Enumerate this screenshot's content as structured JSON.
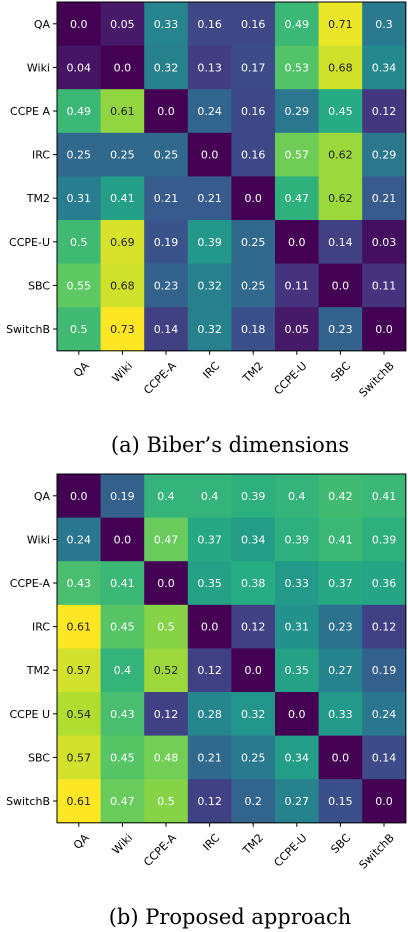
{
  "chart_data": [
    {
      "type": "heatmap",
      "caption": "(a) Biber’s dimensions",
      "row_labels": [
        "QA",
        "Wiki",
        "CCPE A",
        "IRC",
        "TM2",
        "CCPE-U",
        "SBC",
        "SwitchB"
      ],
      "col_labels": [
        "QA",
        "Wiki",
        "CCPE-A",
        "IRC",
        "TM2",
        "CCPE-U",
        "SBC",
        "SwitchB"
      ],
      "values": [
        [
          0.0,
          0.05,
          0.33,
          0.16,
          0.16,
          0.49,
          0.71,
          0.3
        ],
        [
          0.04,
          0.0,
          0.32,
          0.13,
          0.17,
          0.53,
          0.68,
          0.34
        ],
        [
          0.49,
          0.61,
          0.0,
          0.24,
          0.16,
          0.29,
          0.45,
          0.12
        ],
        [
          0.25,
          0.25,
          0.25,
          0.0,
          0.16,
          0.57,
          0.62,
          0.29
        ],
        [
          0.31,
          0.41,
          0.21,
          0.21,
          0.0,
          0.47,
          0.62,
          0.21
        ],
        [
          0.5,
          0.69,
          0.19,
          0.39,
          0.25,
          0.0,
          0.14,
          0.03
        ],
        [
          0.55,
          0.68,
          0.23,
          0.32,
          0.25,
          0.11,
          0.0,
          0.11
        ],
        [
          0.5,
          0.73,
          0.14,
          0.32,
          0.18,
          0.05,
          0.23,
          0.0
        ]
      ],
      "value_labels": [
        [
          "0.0",
          "0.05",
          "0.33",
          "0.16",
          "0.16",
          "0.49",
          "0.71",
          "0.3"
        ],
        [
          "0.04",
          "0.0",
          "0.32",
          "0.13",
          "0.17",
          "0.53",
          "0.68",
          "0.34"
        ],
        [
          "0.49",
          "0.61",
          "0.0",
          "0.24",
          "0.16",
          "0.29",
          "0.45",
          "0.12"
        ],
        [
          "0.25",
          "0.25",
          "0.25",
          "0.0",
          "0.16",
          "0.57",
          "0.62",
          "0.29"
        ],
        [
          "0.31",
          "0.41",
          "0.21",
          "0.21",
          "0.0",
          "0.47",
          "0.62",
          "0.21"
        ],
        [
          "0.5",
          "0.69",
          "0.19",
          "0.39",
          "0.25",
          "0.0",
          "0.14",
          "0.03"
        ],
        [
          "0.55",
          "0.68",
          "0.23",
          "0.32",
          "0.25",
          "0.11",
          "0.0",
          "0.11"
        ],
        [
          "0.5",
          "0.73",
          "0.14",
          "0.32",
          "0.18",
          "0.05",
          "0.23",
          "0.0"
        ]
      ],
      "colormap": "viridis",
      "color_range": [
        0.0,
        0.73
      ]
    },
    {
      "type": "heatmap",
      "caption": "(b) Proposed approach",
      "row_labels": [
        "QA",
        "Wiki",
        "CCPE-A",
        "IRC",
        "TM2",
        "CCPE U",
        "SBC",
        "SwitchB"
      ],
      "col_labels": [
        "QA",
        "Wiki",
        "CCPE-A",
        "IRC",
        "TM2",
        "CCPE-U",
        "SBC",
        "SwitchB"
      ],
      "values": [
        [
          0.0,
          0.19,
          0.4,
          0.4,
          0.39,
          0.4,
          0.42,
          0.41
        ],
        [
          0.24,
          0.0,
          0.47,
          0.37,
          0.34,
          0.39,
          0.41,
          0.39
        ],
        [
          0.43,
          0.41,
          0.0,
          0.35,
          0.38,
          0.33,
          0.37,
          0.36
        ],
        [
          0.61,
          0.45,
          0.5,
          0.0,
          0.12,
          0.31,
          0.23,
          0.12
        ],
        [
          0.57,
          0.4,
          0.52,
          0.12,
          0.0,
          0.35,
          0.27,
          0.19
        ],
        [
          0.54,
          0.43,
          0.12,
          0.28,
          0.32,
          0.0,
          0.33,
          0.24
        ],
        [
          0.57,
          0.45,
          0.48,
          0.21,
          0.25,
          0.34,
          0.0,
          0.14
        ],
        [
          0.61,
          0.47,
          0.5,
          0.12,
          0.2,
          0.27,
          0.15,
          0.0
        ]
      ],
      "value_labels": [
        [
          "0.0",
          "0.19",
          "0.4",
          "0.4",
          "0.39",
          "0.4",
          "0.42",
          "0.41"
        ],
        [
          "0.24",
          "0.0",
          "0.47",
          "0.37",
          "0.34",
          "0.39",
          "0.41",
          "0.39"
        ],
        [
          "0.43",
          "0.41",
          "0.0",
          "0.35",
          "0.38",
          "0.33",
          "0.37",
          "0.36"
        ],
        [
          "0.61",
          "0.45",
          "0.5",
          "0.0",
          "0.12",
          "0.31",
          "0.23",
          "0.12"
        ],
        [
          "0.57",
          "0.4",
          "0.52",
          "0.12",
          "0.0",
          "0.35",
          "0.27",
          "0.19"
        ],
        [
          "0.54",
          "0.43",
          "0.12",
          "0.28",
          "0.32",
          "0.0",
          "0.33",
          "0.24"
        ],
        [
          "0.57",
          "0.45",
          "0.48",
          "0.21",
          "0.25",
          "0.34",
          "0.0",
          "0.14"
        ],
        [
          "0.61",
          "0.47",
          "0.5",
          "0.12",
          "0.2",
          "0.27",
          "0.15",
          "0.0"
        ]
      ],
      "colormap": "viridis",
      "color_range": [
        0.0,
        0.61
      ]
    }
  ]
}
